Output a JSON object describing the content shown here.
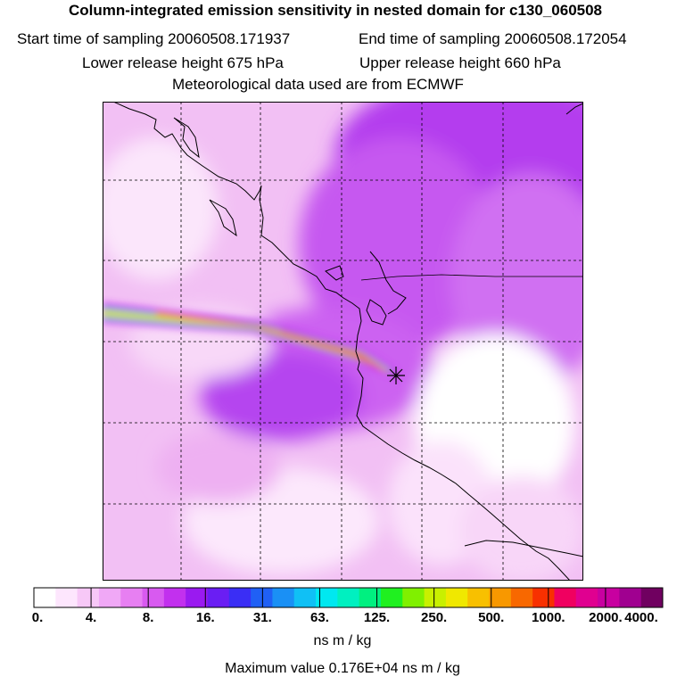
{
  "header": {
    "title": "Column-integrated emission sensitivity in nested domain for c130_060508",
    "start_label": "Start time of sampling 20060508.171937",
    "end_label": "End time of sampling 20060508.172054",
    "lower_label": "Lower release height  675 hPa",
    "upper_label": "Upper release height  660 hPa",
    "met_label": "Meteorological data used are from ECMWF"
  },
  "legend": {
    "ticks": [
      "0.",
      "4.",
      "8.",
      "16.",
      "31.",
      "63.",
      "125.",
      "250.",
      "500.",
      "1000.",
      "2000.",
      "4000."
    ],
    "colors": [
      "#ffffff",
      "#fde6fd",
      "#f7c8f7",
      "#f0a8f6",
      "#e77ff2",
      "#d85af0",
      "#c230ee",
      "#9a1af0",
      "#6a1ef3",
      "#3a2ef5",
      "#2060f5",
      "#1a90f5",
      "#10c0f5",
      "#00e8f0",
      "#00f0c0",
      "#00f080",
      "#20f020",
      "#80f000",
      "#c8f000",
      "#f0e800",
      "#f8c000",
      "#f89800",
      "#f86800",
      "#f83000",
      "#f00060",
      "#e00090",
      "#c800a0",
      "#a00090",
      "#700060"
    ],
    "unit": "ns m / kg"
  },
  "max_value_label": "Maximum value  0.176E+04 ns m / kg",
  "map": {
    "release_marker": "star-icon",
    "plume_colors": [
      "#d43df0",
      "#2a9af5",
      "#00e8f0",
      "#60f040",
      "#f0e000",
      "#f89000",
      "#f83000"
    ]
  }
}
